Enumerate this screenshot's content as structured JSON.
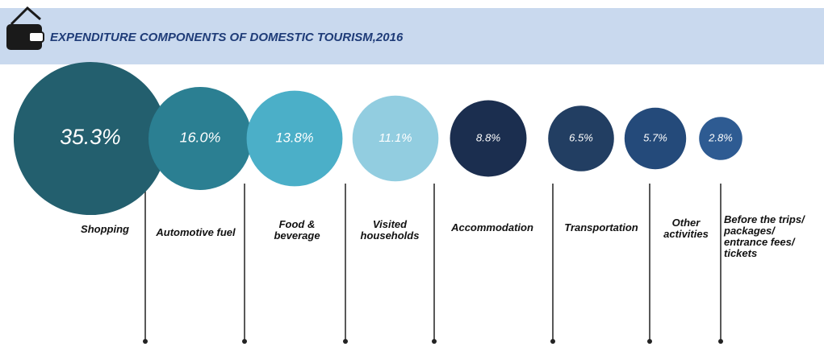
{
  "chart_data": {
    "type": "bubble",
    "title": "EXPENDITURE COMPONENTS OF DOMESTIC TOURISM,2016",
    "categories": [
      "Shopping",
      "Automotive fuel",
      "Food & beverage",
      "Visited households",
      "Accommodation",
      "Transportation",
      "Other activities",
      "Before the trips/ packages/ entrance fees/ tickets"
    ],
    "values": [
      35.3,
      16.0,
      13.8,
      11.1,
      8.8,
      6.5,
      5.7,
      2.8
    ],
    "value_labels": [
      "35.3%",
      "16.0%",
      "13.8%",
      "11.1%",
      "8.8%",
      "6.5%",
      "5.7%",
      "2.8%"
    ],
    "colors": [
      "#235f6e",
      "#2b7f92",
      "#4bafc8",
      "#92cde0",
      "#1b2e4f",
      "#223e62",
      "#244a7a",
      "#2e5b92"
    ]
  }
}
